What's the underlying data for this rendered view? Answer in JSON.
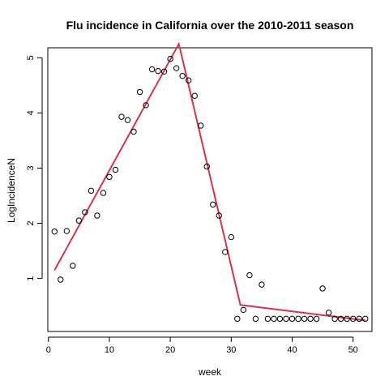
{
  "chart_data": {
    "type": "scatter",
    "title": "Flu incidence in California over the 2010-2011 season",
    "xlabel": "week",
    "ylabel": "LogIncidenceN",
    "xlim": [
      -0.1,
      53.1
    ],
    "ylim": [
      0.04,
      5.18
    ],
    "xticks": [
      0,
      10,
      20,
      30,
      40,
      50
    ],
    "yticks": [
      1,
      2,
      3,
      4,
      5
    ],
    "grid": false,
    "series": [
      {
        "kind": "points",
        "marker": "open-circle",
        "x": [
          1,
          2,
          3,
          4,
          5,
          6,
          7,
          8,
          9,
          10,
          11,
          12,
          13,
          14,
          15,
          16,
          17,
          18,
          19,
          20,
          21,
          22,
          23,
          24,
          25,
          26,
          27,
          28,
          29,
          30,
          31,
          32,
          33,
          34,
          35,
          36,
          37,
          38,
          39,
          40,
          41,
          42,
          43,
          44,
          45,
          46,
          47,
          48,
          49,
          50,
          51,
          52
        ],
        "y": [
          1.85,
          0.98,
          1.86,
          1.23,
          2.05,
          2.2,
          2.59,
          2.14,
          2.55,
          2.84,
          2.97,
          3.93,
          3.87,
          3.66,
          4.38,
          4.14,
          4.79,
          4.76,
          4.75,
          4.98,
          4.81,
          4.67,
          4.59,
          4.31,
          3.77,
          3.03,
          2.34,
          2.14,
          1.48,
          1.75,
          0.27,
          0.43,
          1.06,
          0.27,
          0.89,
          0.27,
          0.27,
          0.27,
          0.27,
          0.27,
          0.27,
          0.27,
          0.27,
          0.27,
          0.82,
          0.38,
          0.27,
          0.27,
          0.27,
          0.27,
          0.27,
          0.27
        ]
      },
      {
        "kind": "segmented-fit",
        "color": "#d6334d",
        "x": [
          1,
          21.4,
          31.5,
          52
        ],
        "y": [
          1.15,
          5.25,
          0.52,
          0.24
        ]
      }
    ]
  }
}
